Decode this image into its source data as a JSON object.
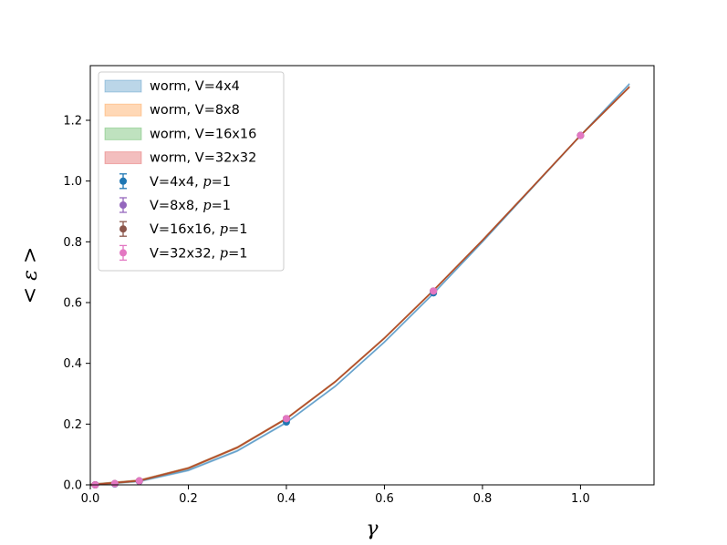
{
  "chart_data": {
    "type": "line",
    "xlabel": "γ",
    "ylabel": "< ε >",
    "xlim": [
      0.0,
      1.15
    ],
    "ylim": [
      0.0,
      1.38
    ],
    "xticks": [
      0.0,
      0.2,
      0.4,
      0.6,
      0.8,
      1.0
    ],
    "yticks": [
      0.0,
      0.2,
      0.4,
      0.6,
      0.8,
      1.0,
      1.2
    ],
    "xtick_labels": [
      "0.0",
      "0.2",
      "0.4",
      "0.6",
      "0.8",
      "1.0"
    ],
    "ytick_labels": [
      "0.0",
      "0.2",
      "0.4",
      "0.6",
      "0.8",
      "1.0",
      "1.2"
    ],
    "grid": false,
    "legend_position": "top-left",
    "worm_series": [
      {
        "name": "worm, V=4x4",
        "color": "#1f77b4",
        "x": [
          0.0,
          0.1,
          0.2,
          0.3,
          0.4,
          0.5,
          0.6,
          0.7,
          0.8,
          0.9,
          1.0,
          1.1
        ],
        "y": [
          0.0,
          0.012,
          0.048,
          0.112,
          0.205,
          0.325,
          0.47,
          0.63,
          0.8,
          0.975,
          1.15,
          1.32
        ]
      },
      {
        "name": "worm, V=8x8",
        "color": "#ff7f0e",
        "x": [
          0.0,
          0.1,
          0.2,
          0.3,
          0.4,
          0.5,
          0.6,
          0.7,
          0.8,
          0.9,
          1.0,
          1.1
        ],
        "y": [
          0.0,
          0.014,
          0.055,
          0.123,
          0.218,
          0.34,
          0.483,
          0.64,
          0.805,
          0.977,
          1.15,
          1.31
        ]
      },
      {
        "name": "worm, V=16x16",
        "color": "#2ca02c",
        "x": [
          0.0,
          0.1,
          0.2,
          0.3,
          0.4,
          0.5,
          0.6,
          0.7,
          0.8,
          0.9,
          1.0,
          1.1
        ],
        "y": [
          0.0,
          0.014,
          0.055,
          0.123,
          0.218,
          0.34,
          0.483,
          0.64,
          0.805,
          0.977,
          1.15,
          1.31
        ]
      },
      {
        "name": "worm, V=32x32",
        "color": "#d62728",
        "x": [
          0.0,
          0.1,
          0.2,
          0.3,
          0.4,
          0.5,
          0.6,
          0.7,
          0.8,
          0.9,
          1.0,
          1.1
        ],
        "y": [
          0.0,
          0.014,
          0.055,
          0.123,
          0.218,
          0.34,
          0.483,
          0.64,
          0.805,
          0.977,
          1.15,
          1.31
        ]
      }
    ],
    "point_series": [
      {
        "name_prefix": "V=4x4, ",
        "name_p": "p",
        "name_suffix": "=1",
        "color": "#1f77b4",
        "x": [
          0.01,
          0.05,
          0.1,
          0.4,
          0.7,
          1.0
        ],
        "y": [
          0.0,
          0.003,
          0.012,
          0.207,
          0.632,
          1.15
        ]
      },
      {
        "name_prefix": "V=8x8, ",
        "name_p": "p",
        "name_suffix": "=1",
        "color": "#9467bd",
        "x": [
          0.01,
          0.05,
          0.1,
          0.4,
          0.7,
          1.0
        ],
        "y": [
          0.0,
          0.004,
          0.013,
          0.218,
          0.638,
          1.15
        ]
      },
      {
        "name_prefix": "V=16x16, ",
        "name_p": "p",
        "name_suffix": "=1",
        "color": "#8c564b",
        "x": [
          0.01,
          0.05,
          0.1,
          0.4,
          0.7,
          1.0
        ],
        "y": [
          0.0,
          0.004,
          0.013,
          0.218,
          0.638,
          1.15
        ]
      },
      {
        "name_prefix": "V=32x32, ",
        "name_p": "p",
        "name_suffix": "=1",
        "color": "#e377c2",
        "x": [
          0.01,
          0.05,
          0.1,
          0.4,
          0.7,
          1.0
        ],
        "y": [
          0.0,
          0.004,
          0.013,
          0.218,
          0.638,
          1.15
        ]
      }
    ]
  }
}
